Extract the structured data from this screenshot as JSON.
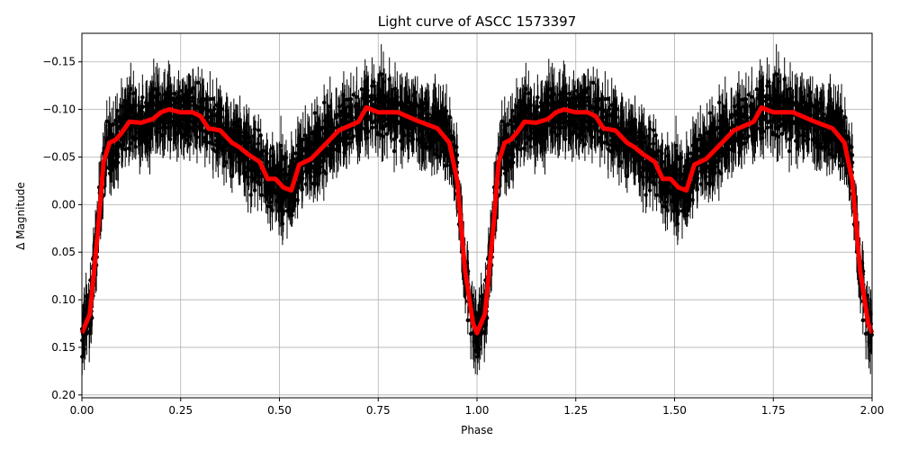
{
  "chart_data": {
    "type": "scatter",
    "title": "Light curve of ASCC 1573397",
    "xlabel": "Phase",
    "ylabel": "Δ Magnitude",
    "xlim": [
      0.0,
      2.0
    ],
    "ylim": [
      -0.18,
      0.203
    ],
    "y_inverted": true,
    "grid": true,
    "x_ticks": [
      "0.00",
      "0.25",
      "0.50",
      "0.75",
      "1.00",
      "1.25",
      "1.50",
      "1.75",
      "2.00"
    ],
    "y_ticks": [
      "−0.15",
      "−0.10",
      "−0.05",
      "0.00",
      "0.05",
      "0.10",
      "0.15",
      "0.20"
    ],
    "x_tick_values": [
      0,
      0.25,
      0.5,
      0.75,
      1.0,
      1.25,
      1.5,
      1.75,
      2.0
    ],
    "y_tick_values": [
      -0.15,
      -0.1,
      -0.05,
      0,
      0.05,
      0.1,
      0.15,
      0.2
    ],
    "series": [
      {
        "kind": "errorbar-points",
        "color": "#000000",
        "description_of_values": "observations with error bars, scattered around the model curve, repeated over two phase cycles"
      },
      {
        "kind": "line",
        "color": "#ff0000",
        "x": [
          0.0,
          0.02,
          0.04,
          0.055,
          0.07,
          0.085,
          0.1,
          0.12,
          0.15,
          0.18,
          0.2,
          0.22,
          0.25,
          0.28,
          0.3,
          0.32,
          0.35,
          0.38,
          0.4,
          0.42,
          0.45,
          0.47,
          0.49,
          0.51,
          0.53,
          0.55,
          0.58,
          0.62,
          0.65,
          0.7,
          0.72,
          0.75,
          0.8,
          0.85,
          0.9,
          0.93,
          0.95,
          0.97,
          0.99,
          1.0
        ],
        "y": [
          0.135,
          0.115,
          0.03,
          -0.045,
          -0.065,
          -0.068,
          -0.075,
          -0.087,
          -0.086,
          -0.09,
          -0.097,
          -0.1,
          -0.097,
          -0.097,
          -0.093,
          -0.08,
          -0.078,
          -0.065,
          -0.06,
          -0.053,
          -0.045,
          -0.027,
          -0.027,
          -0.018,
          -0.015,
          -0.042,
          -0.048,
          -0.065,
          -0.078,
          -0.087,
          -0.102,
          -0.097,
          -0.097,
          -0.088,
          -0.08,
          -0.065,
          -0.025,
          0.07,
          0.125,
          0.135
        ]
      }
    ]
  }
}
